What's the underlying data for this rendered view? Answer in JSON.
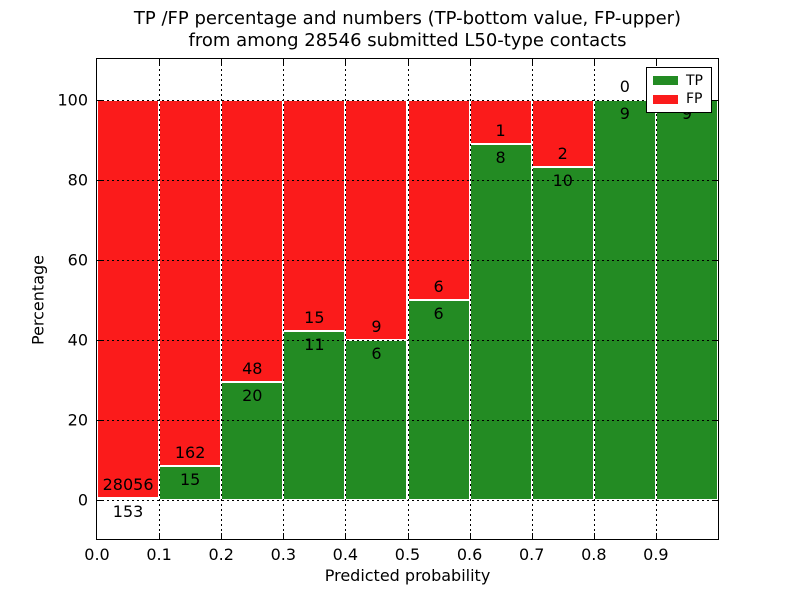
{
  "title": {
    "line1": "TP /FP percentage and numbers (TP-bottom value, FP-upper)",
    "line2": "from among 28546 submitted L50-type contacts"
  },
  "axes": {
    "xlabel": "Predicted probability",
    "ylabel": "Percentage",
    "x_tick_labels": [
      "0.0",
      "0.1",
      "0.2",
      "0.3",
      "0.4",
      "0.5",
      "0.6",
      "0.7",
      "0.8",
      "0.9"
    ],
    "y_tick_values": [
      0,
      20,
      40,
      60,
      80,
      100
    ],
    "xlim": [
      0.0,
      1.0
    ],
    "ylim": [
      -10,
      110
    ],
    "grid": "dotted"
  },
  "legend": {
    "position": "upper-right",
    "entries": [
      {
        "label": "TP",
        "color": "#238b23"
      },
      {
        "label": "FP",
        "color": "#fb1b1b"
      }
    ]
  },
  "colors": {
    "tp": "#238b23",
    "fp": "#fb1b1b",
    "bar_edge": "#ffffff",
    "grid": "#000000",
    "text": "#000000",
    "background": "#ffffff"
  },
  "chart_data": {
    "type": "bar",
    "stacked": true,
    "title": "TP /FP percentage and numbers (TP-bottom value, FP-upper) from among 28546 submitted L50-type contacts",
    "xlabel": "Predicted probability",
    "ylabel": "Percentage",
    "total_submitted": 28546,
    "bin_width": 0.1,
    "series_names": [
      "TP",
      "FP"
    ],
    "bins": [
      {
        "x_start": 0.0,
        "tp_count": 153,
        "fp_count": 28056,
        "tp_pct": 0.54,
        "fp_pct": 99.46,
        "tp_label": "153",
        "fp_label": "28056"
      },
      {
        "x_start": 0.1,
        "tp_count": 15,
        "fp_count": 162,
        "tp_pct": 8.47,
        "fp_pct": 91.53,
        "tp_label": "15",
        "fp_label": "162"
      },
      {
        "x_start": 0.2,
        "tp_count": 20,
        "fp_count": 48,
        "tp_pct": 29.41,
        "fp_pct": 70.59,
        "tp_label": "20",
        "fp_label": "48"
      },
      {
        "x_start": 0.3,
        "tp_count": 11,
        "fp_count": 15,
        "tp_pct": 42.31,
        "fp_pct": 57.69,
        "tp_label": "11",
        "fp_label": "15"
      },
      {
        "x_start": 0.4,
        "tp_count": 6,
        "fp_count": 9,
        "tp_pct": 40.0,
        "fp_pct": 60.0,
        "tp_label": "6",
        "fp_label": "9"
      },
      {
        "x_start": 0.5,
        "tp_count": 6,
        "fp_count": 6,
        "tp_pct": 50.0,
        "fp_pct": 50.0,
        "tp_label": "6",
        "fp_label": "6"
      },
      {
        "x_start": 0.6,
        "tp_count": 8,
        "fp_count": 1,
        "tp_pct": 88.89,
        "fp_pct": 11.11,
        "tp_label": "8",
        "fp_label": "1"
      },
      {
        "x_start": 0.7,
        "tp_count": 10,
        "fp_count": 2,
        "tp_pct": 83.33,
        "fp_pct": 16.67,
        "tp_label": "10",
        "fp_label": "2"
      },
      {
        "x_start": 0.8,
        "tp_count": 9,
        "fp_count": 0,
        "tp_pct": 100.0,
        "fp_pct": 0.0,
        "tp_label": "9",
        "fp_label": "0"
      },
      {
        "x_start": 0.9,
        "tp_count": 9,
        "fp_count": 0,
        "tp_pct": 100.0,
        "fp_pct": 0.0,
        "tp_label": "9",
        "fp_label": ""
      }
    ]
  }
}
